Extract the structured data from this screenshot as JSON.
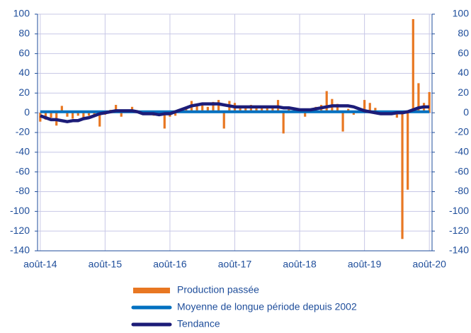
{
  "chart_data": {
    "type": "bar",
    "categories": [
      "août-14",
      null,
      null,
      null,
      null,
      null,
      null,
      null,
      null,
      null,
      null,
      null,
      "août-15",
      null,
      null,
      null,
      null,
      null,
      null,
      null,
      null,
      null,
      null,
      null,
      "août-16",
      null,
      null,
      null,
      null,
      null,
      null,
      null,
      null,
      null,
      null,
      null,
      "août-17",
      null,
      null,
      null,
      null,
      null,
      null,
      null,
      null,
      null,
      null,
      null,
      "août-18",
      null,
      null,
      null,
      null,
      null,
      null,
      null,
      null,
      null,
      null,
      null,
      "août-19",
      null,
      null,
      null,
      null,
      null,
      null,
      null,
      null,
      null,
      null,
      null,
      "août-20"
    ],
    "series": [
      {
        "name": "Production passée",
        "type": "bar",
        "color": "#E87722",
        "values": [
          -9,
          -7,
          -5,
          -13,
          7,
          -4,
          -6,
          -3,
          -5,
          -3,
          -2,
          -14,
          -2,
          3,
          8,
          -4,
          2,
          6,
          2,
          -2,
          -1,
          -3,
          -2,
          -16,
          -4,
          -3,
          3,
          6,
          12,
          8,
          10,
          6,
          11,
          13,
          -16,
          12,
          10,
          7,
          5,
          8,
          6,
          7,
          5,
          6,
          13,
          -21,
          4,
          5,
          3,
          -4,
          4,
          6,
          8,
          22,
          14,
          9,
          -19,
          4,
          -2,
          2,
          13,
          10,
          5,
          -2,
          2,
          -2,
          -5,
          -128,
          -78,
          95,
          30,
          10,
          21
        ]
      },
      {
        "name": "Moyenne de longue période depuis 2002",
        "type": "line",
        "color": "#0070C0",
        "values": [
          1,
          1,
          1,
          1,
          1,
          1,
          1,
          1,
          1,
          1,
          1,
          1,
          1,
          1,
          1,
          1,
          1,
          1,
          1,
          1,
          1,
          1,
          1,
          1,
          1,
          1,
          1,
          1,
          1,
          1,
          1,
          1,
          1,
          1,
          1,
          1,
          1,
          1,
          1,
          1,
          1,
          1,
          1,
          1,
          1,
          1,
          1,
          1,
          1,
          1,
          1,
          1,
          1,
          1,
          1,
          1,
          1,
          1,
          1,
          1,
          1,
          1,
          1,
          1,
          1,
          1,
          1,
          1,
          1,
          1,
          1,
          1,
          1
        ]
      },
      {
        "name": "Tendance",
        "type": "line",
        "color": "#1C1C78",
        "values": [
          -3,
          -5,
          -7,
          -7,
          -8,
          -9,
          -8,
          -8,
          -6,
          -5,
          -3,
          -1,
          0,
          1,
          2,
          2,
          2,
          2,
          1,
          -1,
          -1,
          -1,
          -2,
          -1,
          -1,
          1,
          3,
          5,
          7,
          8,
          9,
          9,
          9,
          9,
          8,
          7,
          6,
          6,
          6,
          6,
          6,
          6,
          6,
          6,
          6,
          5,
          5,
          4,
          3,
          3,
          3,
          4,
          5,
          6,
          7,
          7,
          7,
          7,
          6,
          4,
          2,
          1,
          0,
          -1,
          -1,
          -1,
          0,
          0,
          1,
          3,
          5,
          6,
          6
        ]
      }
    ],
    "ylim": [
      -140,
      100
    ],
    "yticks": [
      -140,
      -120,
      -100,
      -80,
      -60,
      -40,
      -20,
      0,
      20,
      40,
      60,
      80,
      100
    ],
    "y2lim": [
      -140,
      100
    ],
    "y2ticks": [
      -140,
      -120,
      -100,
      -80,
      -60,
      -40,
      -20,
      0,
      20,
      40,
      60,
      80,
      100
    ],
    "grid": true
  }
}
